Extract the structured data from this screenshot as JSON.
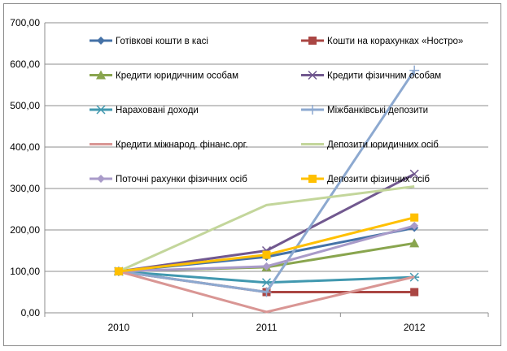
{
  "chart_data": {
    "type": "line",
    "title": "",
    "xlabel": "",
    "ylabel": "",
    "categories": [
      "2010",
      "2011",
      "2012"
    ],
    "ylim": [
      0,
      700
    ],
    "y_ticks": [
      "0,00",
      "100,00",
      "200,00",
      "300,00",
      "400,00",
      "500,00",
      "600,00",
      "700,00"
    ],
    "grid": "horizontal",
    "legend_position": "top, two columns",
    "series": [
      {
        "name": "Готівкові кошти в касі",
        "color": "#4572A7",
        "marker": "diamond",
        "values": [
          100,
          135,
          205
        ]
      },
      {
        "name": "Кошти на корахунках «Ностро»",
        "color": "#AA4643",
        "marker": "square",
        "values": [
          100,
          50,
          50
        ]
      },
      {
        "name": "Кредити юридичним особам",
        "color": "#89A54E",
        "marker": "triangle",
        "values": [
          100,
          110,
          168
        ]
      },
      {
        "name": "Кредити фізичним особам",
        "color": "#71588F",
        "marker": "x",
        "values": [
          100,
          150,
          335
        ]
      },
      {
        "name": "Нараховані доходи",
        "color": "#4198AF",
        "marker": "asterisk",
        "values": [
          100,
          73,
          86
        ]
      },
      {
        "name": "Міжбанківські депозити",
        "color": "#8DA9D0",
        "marker": "plus",
        "values": [
          100,
          50,
          585
        ]
      },
      {
        "name": "Кредити міжнарод. фінанс.орг.",
        "color": "#D99694",
        "marker": "none",
        "values": [
          100,
          2,
          87
        ]
      },
      {
        "name": "Депозити юридичних осіб",
        "color": "#C3D69B",
        "marker": "none",
        "values": [
          100,
          260,
          305
        ]
      },
      {
        "name": "Поточні рахунки фізичних осіб",
        "color": "#A99BC9",
        "marker": "diamond",
        "values": [
          100,
          112,
          210
        ]
      },
      {
        "name": "Депозити фізичних осіб",
        "color": "#FFC000",
        "marker": "square",
        "values": [
          100,
          140,
          230
        ]
      }
    ]
  }
}
